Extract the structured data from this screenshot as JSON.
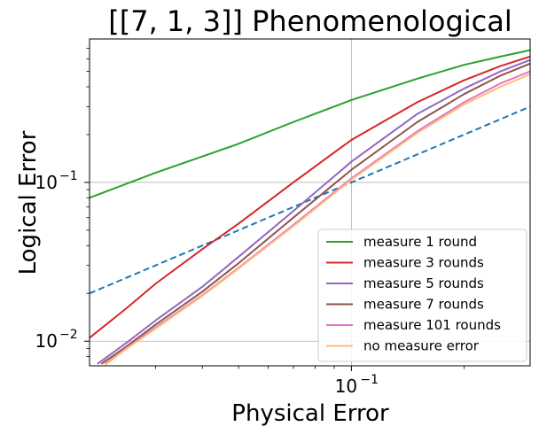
{
  "chart_data": {
    "type": "line",
    "title": "[[7, 1, 3]] Phenomenological",
    "xlabel": "Physical Error",
    "ylabel": "Logical Error",
    "xscale": "log",
    "yscale": "log",
    "xlim": [
      0.02,
      0.3
    ],
    "ylim": [
      0.007,
      0.8
    ],
    "grid": true,
    "legend_position": "lower-right",
    "x_ticks": [
      {
        "value": 0.1,
        "base": "10",
        "exp": "−1"
      }
    ],
    "y_ticks": [
      {
        "value": 0.01,
        "base": "10",
        "exp": "−2"
      },
      {
        "value": 0.1,
        "base": "10",
        "exp": "−1"
      }
    ],
    "reference_line": {
      "style": "dashed",
      "color": "#1f77b4",
      "x": [
        0.02,
        0.3
      ],
      "y": [
        0.02,
        0.3
      ]
    },
    "series": [
      {
        "name": "measure 1 round",
        "color": "#2ca02c",
        "x": [
          0.02,
          0.03,
          0.05,
          0.07,
          0.1,
          0.15,
          0.2,
          0.25,
          0.3
        ],
        "y": [
          0.08,
          0.115,
          0.175,
          0.24,
          0.33,
          0.45,
          0.55,
          0.62,
          0.68
        ]
      },
      {
        "name": "measure 3 rounds",
        "color": "#d62728",
        "x": [
          0.02,
          0.025,
          0.03,
          0.04,
          0.05,
          0.07,
          0.1,
          0.15,
          0.2,
          0.25,
          0.3
        ],
        "y": [
          0.0105,
          0.016,
          0.023,
          0.038,
          0.055,
          0.1,
          0.185,
          0.32,
          0.44,
          0.54,
          0.62
        ]
      },
      {
        "name": "measure 5 rounds",
        "color": "#9467bd",
        "x": [
          0.021,
          0.025,
          0.03,
          0.04,
          0.05,
          0.07,
          0.1,
          0.15,
          0.2,
          0.25,
          0.3
        ],
        "y": [
          0.0072,
          0.0097,
          0.0135,
          0.022,
          0.034,
          0.066,
          0.135,
          0.27,
          0.39,
          0.5,
          0.59
        ]
      },
      {
        "name": "measure 7 rounds",
        "color": "#8c564b",
        "x": [
          0.0215,
          0.025,
          0.03,
          0.04,
          0.05,
          0.07,
          0.1,
          0.15,
          0.2,
          0.25,
          0.3
        ],
        "y": [
          0.0072,
          0.0092,
          0.0127,
          0.0205,
          0.031,
          0.06,
          0.12,
          0.24,
          0.36,
          0.47,
          0.56
        ]
      },
      {
        "name": "measure 101 rounds",
        "color": "#e377c2",
        "x": [
          0.022,
          0.025,
          0.03,
          0.04,
          0.05,
          0.07,
          0.1,
          0.15,
          0.2,
          0.25,
          0.3
        ],
        "y": [
          0.0072,
          0.009,
          0.0122,
          0.0195,
          0.029,
          0.054,
          0.106,
          0.21,
          0.32,
          0.42,
          0.5
        ]
      },
      {
        "name": "no measure error",
        "color": "#ffbb78",
        "x": [
          0.022,
          0.025,
          0.03,
          0.04,
          0.05,
          0.07,
          0.1,
          0.15,
          0.2,
          0.25,
          0.3
        ],
        "y": [
          0.0071,
          0.0089,
          0.012,
          0.0193,
          0.0287,
          0.053,
          0.104,
          0.205,
          0.31,
          0.4,
          0.48
        ]
      }
    ]
  }
}
